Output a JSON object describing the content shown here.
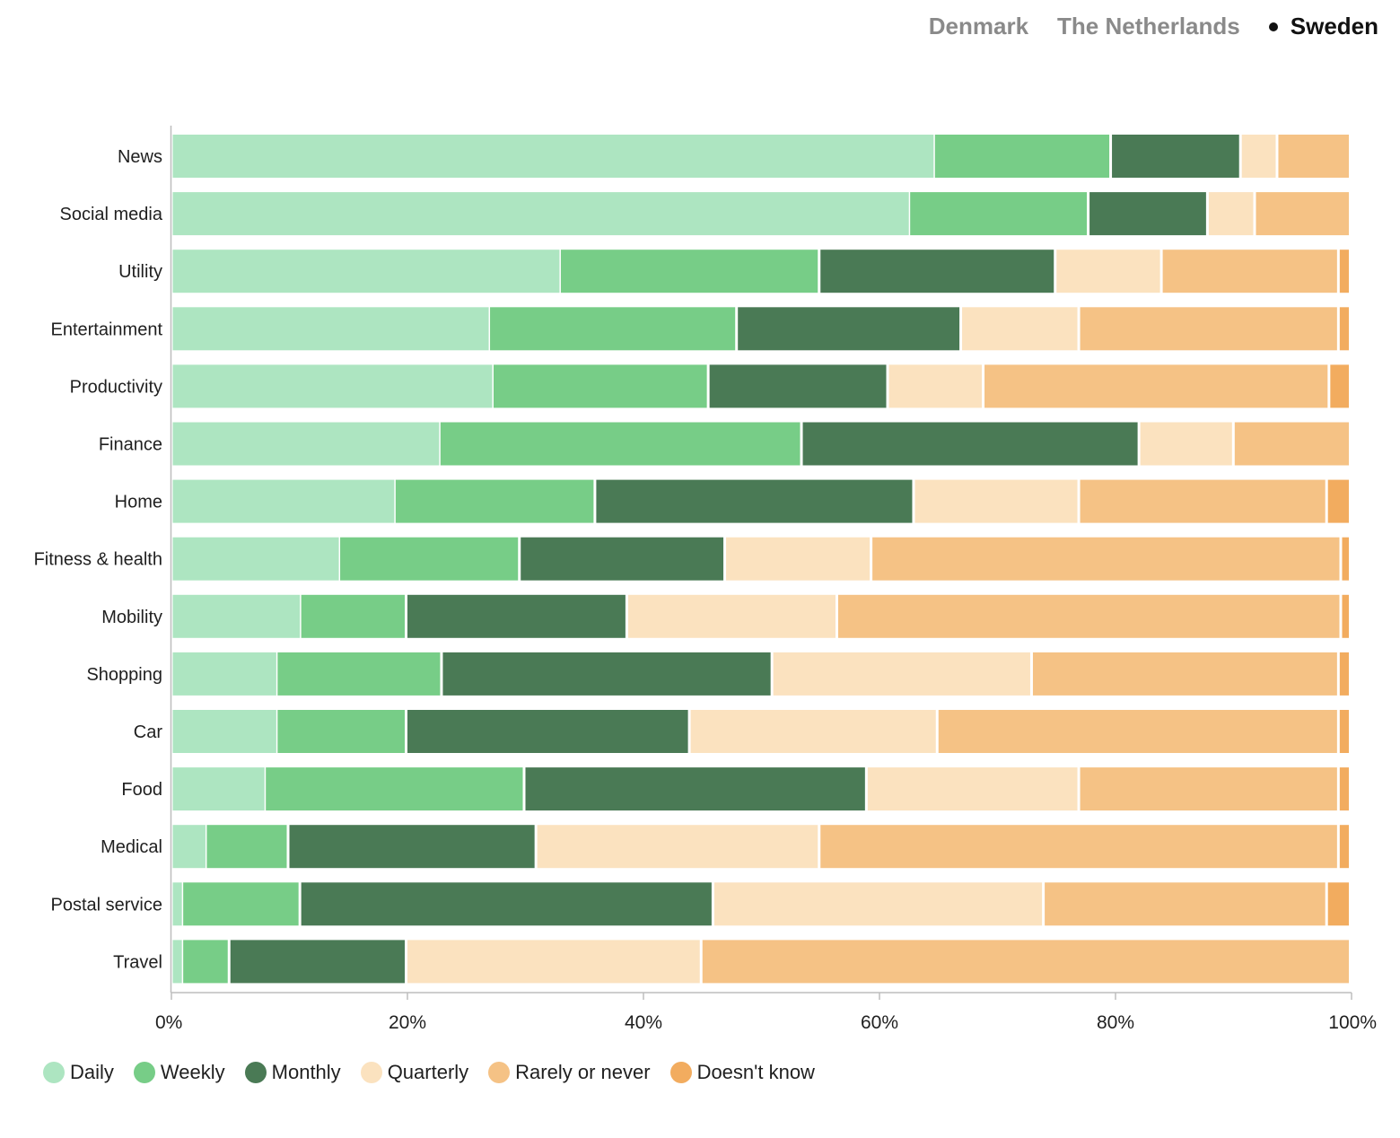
{
  "tabs": [
    {
      "label": "Denmark",
      "active": false
    },
    {
      "label": "The Netherlands",
      "active": false
    },
    {
      "label": "Sweden",
      "active": true
    }
  ],
  "colors": {
    "daily": "#ade5c1",
    "weekly": "#77cd87",
    "monthly": "#4a7a55",
    "quarterly": "#fbe2bf",
    "rarely": "#f5c285",
    "doesnt_know": "#f2ac5f"
  },
  "chart_data": {
    "type": "bar",
    "orientation": "horizontal",
    "stacked": true,
    "xlim": [
      0,
      100
    ],
    "x_ticks": [
      "0%",
      "20%",
      "40%",
      "60%",
      "80%",
      "100%"
    ],
    "legend_position": "bottom-left",
    "categories": [
      "News",
      "Social media",
      "Utility",
      "Entertainment",
      "Productivity",
      "Finance",
      "Home",
      "Fitness & health",
      "Mobility",
      "Shopping",
      "Car",
      "Food",
      "Medical",
      "Postal service",
      "Travel"
    ],
    "series": [
      {
        "name": "Daily",
        "color": "#ade5c1",
        "values": [
          64.7,
          62.6,
          33.0,
          27.0,
          27.3,
          22.8,
          19.0,
          14.3,
          11.0,
          9.0,
          9.0,
          8.0,
          3.0,
          1.0,
          1.0
        ]
      },
      {
        "name": "Weekly",
        "color": "#77cd87",
        "values": [
          15.0,
          15.2,
          22.0,
          21.0,
          18.3,
          30.7,
          17.0,
          15.3,
          9.0,
          14.0,
          11.0,
          22.0,
          7.0,
          10.0,
          4.0
        ]
      },
      {
        "name": "Monthly",
        "color": "#4a7a55",
        "values": [
          11.0,
          10.1,
          20.0,
          19.0,
          15.2,
          28.6,
          27.0,
          17.4,
          18.7,
          28.0,
          24.0,
          29.0,
          21.0,
          35.0,
          15.0
        ]
      },
      {
        "name": "Quarterly",
        "color": "#fbe2bf",
        "values": [
          3.1,
          4.0,
          9.0,
          10.0,
          8.1,
          8.0,
          14.0,
          12.4,
          17.8,
          22.0,
          21.0,
          18.0,
          24.0,
          28.0,
          25.0
        ]
      },
      {
        "name": "Rarely or never",
        "color": "#f5c285",
        "values": [
          6.2,
          8.1,
          15.0,
          22.0,
          29.3,
          9.9,
          21.0,
          39.8,
          42.7,
          26.0,
          34.0,
          22.0,
          44.0,
          24.0,
          55.0
        ]
      },
      {
        "name": "Doesn't know",
        "color": "#f2ac5f",
        "values": [
          0,
          0,
          1.0,
          1.0,
          1.8,
          0,
          2.0,
          0.8,
          0.8,
          1.0,
          1.0,
          1.0,
          1.0,
          2.0,
          0
        ]
      }
    ]
  }
}
